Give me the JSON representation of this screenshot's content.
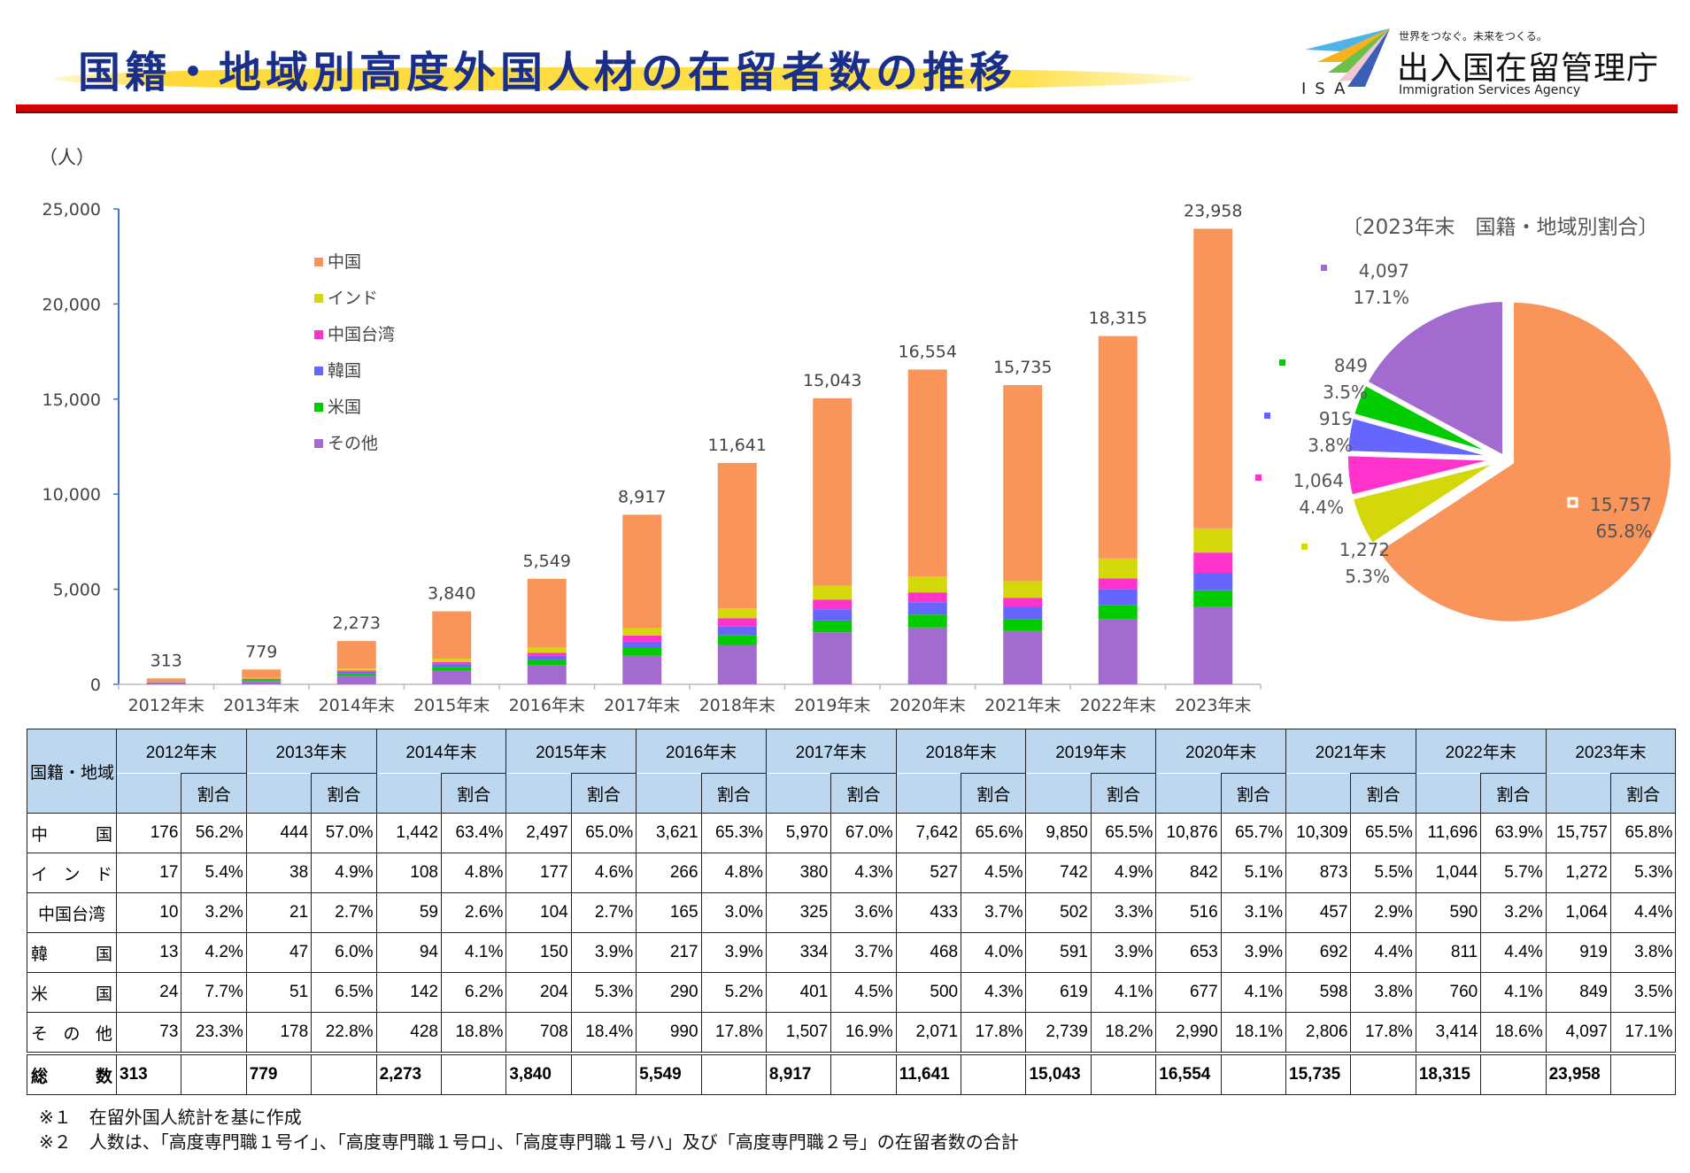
{
  "header": {
    "title": "国籍・地域別高度外国人材の在留者数の推移",
    "logo": {
      "tagline": "世界をつなぐ。未来をつくる。",
      "name": "出入国在留管理庁",
      "english": "Immigration Services Agency",
      "abbr": "ISA"
    }
  },
  "chart_data": [
    {
      "type": "bar",
      "stacked": true,
      "unit_label": "（人）",
      "categories": [
        "2012年末",
        "2013年末",
        "2014年末",
        "2015年末",
        "2016年末",
        "2017年末",
        "2018年末",
        "2019年末",
        "2020年末",
        "2021年末",
        "2022年末",
        "2023年末"
      ],
      "ylim": [
        0,
        25000
      ],
      "yticks": [
        "0",
        "5,000",
        "10,000",
        "15,000",
        "20,000",
        "25,000"
      ],
      "ytick_values": [
        0,
        5000,
        10000,
        15000,
        20000,
        25000
      ],
      "grid": false,
      "legend_position": "top-left",
      "series": [
        {
          "name": "その他",
          "color": "#a36bd0",
          "values": [
            73,
            178,
            428,
            708,
            990,
            1507,
            2071,
            2739,
            2990,
            2806,
            3414,
            4097
          ]
        },
        {
          "name": "米国",
          "color": "#00cc00",
          "values": [
            24,
            51,
            142,
            204,
            290,
            401,
            500,
            619,
            677,
            598,
            760,
            849
          ]
        },
        {
          "name": "韓国",
          "color": "#6666ff",
          "values": [
            13,
            47,
            94,
            150,
            217,
            334,
            468,
            591,
            653,
            692,
            811,
            919
          ]
        },
        {
          "name": "中国台湾",
          "color": "#ff33cc",
          "values": [
            10,
            21,
            59,
            104,
            165,
            325,
            433,
            502,
            516,
            457,
            590,
            1064
          ]
        },
        {
          "name": "インド",
          "color": "#d4d80a",
          "values": [
            17,
            38,
            108,
            177,
            266,
            380,
            527,
            742,
            842,
            873,
            1044,
            1272
          ]
        },
        {
          "name": "中国",
          "color": "#f9955a",
          "values": [
            176,
            444,
            1442,
            2497,
            3621,
            5970,
            7642,
            9850,
            10876,
            10309,
            11696,
            15757
          ]
        }
      ],
      "legend_order": [
        "中国",
        "インド",
        "中国台湾",
        "韓国",
        "米国",
        "その他"
      ],
      "totals": [
        "313",
        "779",
        "2,273",
        "3,840",
        "5,549",
        "8,917",
        "11,641",
        "15,043",
        "16,554",
        "15,735",
        "18,315",
        "23,958"
      ]
    },
    {
      "type": "pie",
      "title": "〔2023年末　国籍・地域別割合〕",
      "slices": [
        {
          "name": "中国",
          "color": "#f9955a",
          "value": 15757,
          "value_label": "15,757",
          "pct_label": "65.8%"
        },
        {
          "name": "インド",
          "color": "#d4d80a",
          "value": 1272,
          "value_label": "1,272",
          "pct_label": "5.3%"
        },
        {
          "name": "中国台湾",
          "color": "#ff33cc",
          "value": 1064,
          "value_label": "1,064",
          "pct_label": "4.4%"
        },
        {
          "name": "韓国",
          "color": "#6666ff",
          "value": 919,
          "value_label": "919",
          "pct_label": "3.8%"
        },
        {
          "name": "米国",
          "color": "#00cc00",
          "value": 849,
          "value_label": "849",
          "pct_label": "3.5%"
        },
        {
          "name": "その他",
          "color": "#a36bd0",
          "value": 4097,
          "value_label": "4,097",
          "pct_label": "17.1%"
        }
      ]
    }
  ],
  "table": {
    "corner": "国籍・地域",
    "years": [
      "2012年末",
      "2013年末",
      "2014年末",
      "2015年末",
      "2016年末",
      "2017年末",
      "2018年末",
      "2019年末",
      "2020年末",
      "2021年末",
      "2022年末",
      "2023年末"
    ],
    "ratio_header": "割合",
    "rows": [
      {
        "label": "中　　国",
        "cells": [
          [
            "176",
            "56.2%"
          ],
          [
            "444",
            "57.0%"
          ],
          [
            "1,442",
            "63.4%"
          ],
          [
            "2,497",
            "65.0%"
          ],
          [
            "3,621",
            "65.3%"
          ],
          [
            "5,970",
            "67.0%"
          ],
          [
            "7,642",
            "65.6%"
          ],
          [
            "9,850",
            "65.5%"
          ],
          [
            "10,876",
            "65.7%"
          ],
          [
            "10,309",
            "65.5%"
          ],
          [
            "11,696",
            "63.9%"
          ],
          [
            "15,757",
            "65.8%"
          ]
        ]
      },
      {
        "label": "イ ン ド",
        "cells": [
          [
            "17",
            "5.4%"
          ],
          [
            "38",
            "4.9%"
          ],
          [
            "108",
            "4.8%"
          ],
          [
            "177",
            "4.6%"
          ],
          [
            "266",
            "4.8%"
          ],
          [
            "380",
            "4.3%"
          ],
          [
            "527",
            "4.5%"
          ],
          [
            "742",
            "4.9%"
          ],
          [
            "842",
            "5.1%"
          ],
          [
            "873",
            "5.5%"
          ],
          [
            "1,044",
            "5.7%"
          ],
          [
            "1,272",
            "5.3%"
          ]
        ]
      },
      {
        "label": "中国台湾",
        "center": true,
        "cells": [
          [
            "10",
            "3.2%"
          ],
          [
            "21",
            "2.7%"
          ],
          [
            "59",
            "2.6%"
          ],
          [
            "104",
            "2.7%"
          ],
          [
            "165",
            "3.0%"
          ],
          [
            "325",
            "3.6%"
          ],
          [
            "433",
            "3.7%"
          ],
          [
            "502",
            "3.3%"
          ],
          [
            "516",
            "3.1%"
          ],
          [
            "457",
            "2.9%"
          ],
          [
            "590",
            "3.2%"
          ],
          [
            "1,064",
            "4.4%"
          ]
        ]
      },
      {
        "label": "韓　　国",
        "cells": [
          [
            "13",
            "4.2%"
          ],
          [
            "47",
            "6.0%"
          ],
          [
            "94",
            "4.1%"
          ],
          [
            "150",
            "3.9%"
          ],
          [
            "217",
            "3.9%"
          ],
          [
            "334",
            "3.7%"
          ],
          [
            "468",
            "4.0%"
          ],
          [
            "591",
            "3.9%"
          ],
          [
            "653",
            "3.9%"
          ],
          [
            "692",
            "4.4%"
          ],
          [
            "811",
            "4.4%"
          ],
          [
            "919",
            "3.8%"
          ]
        ]
      },
      {
        "label": "米　　国",
        "cells": [
          [
            "24",
            "7.7%"
          ],
          [
            "51",
            "6.5%"
          ],
          [
            "142",
            "6.2%"
          ],
          [
            "204",
            "5.3%"
          ],
          [
            "290",
            "5.2%"
          ],
          [
            "401",
            "4.5%"
          ],
          [
            "500",
            "4.3%"
          ],
          [
            "619",
            "4.1%"
          ],
          [
            "677",
            "4.1%"
          ],
          [
            "598",
            "3.8%"
          ],
          [
            "760",
            "4.1%"
          ],
          [
            "849",
            "3.5%"
          ]
        ]
      },
      {
        "label": "そ の 他",
        "cells": [
          [
            "73",
            "23.3%"
          ],
          [
            "178",
            "22.8%"
          ],
          [
            "428",
            "18.8%"
          ],
          [
            "708",
            "18.4%"
          ],
          [
            "990",
            "17.8%"
          ],
          [
            "1,507",
            "16.9%"
          ],
          [
            "2,071",
            "17.8%"
          ],
          [
            "2,739",
            "18.2%"
          ],
          [
            "2,990",
            "18.1%"
          ],
          [
            "2,806",
            "17.8%"
          ],
          [
            "3,414",
            "18.6%"
          ],
          [
            "4,097",
            "17.1%"
          ]
        ]
      }
    ],
    "total": {
      "label": "総　　数",
      "cells": [
        "313",
        "779",
        "2,273",
        "3,840",
        "5,549",
        "8,917",
        "11,641",
        "15,043",
        "16,554",
        "15,735",
        "18,315",
        "23,958"
      ]
    }
  },
  "notes": [
    "※１　在留外国人統計を基に作成",
    "※２　人数は、「高度専門職１号イ」、「高度専門職１号ロ」、「高度専門職１号ハ」及び「高度専門職２号」の在留者数の合計"
  ]
}
